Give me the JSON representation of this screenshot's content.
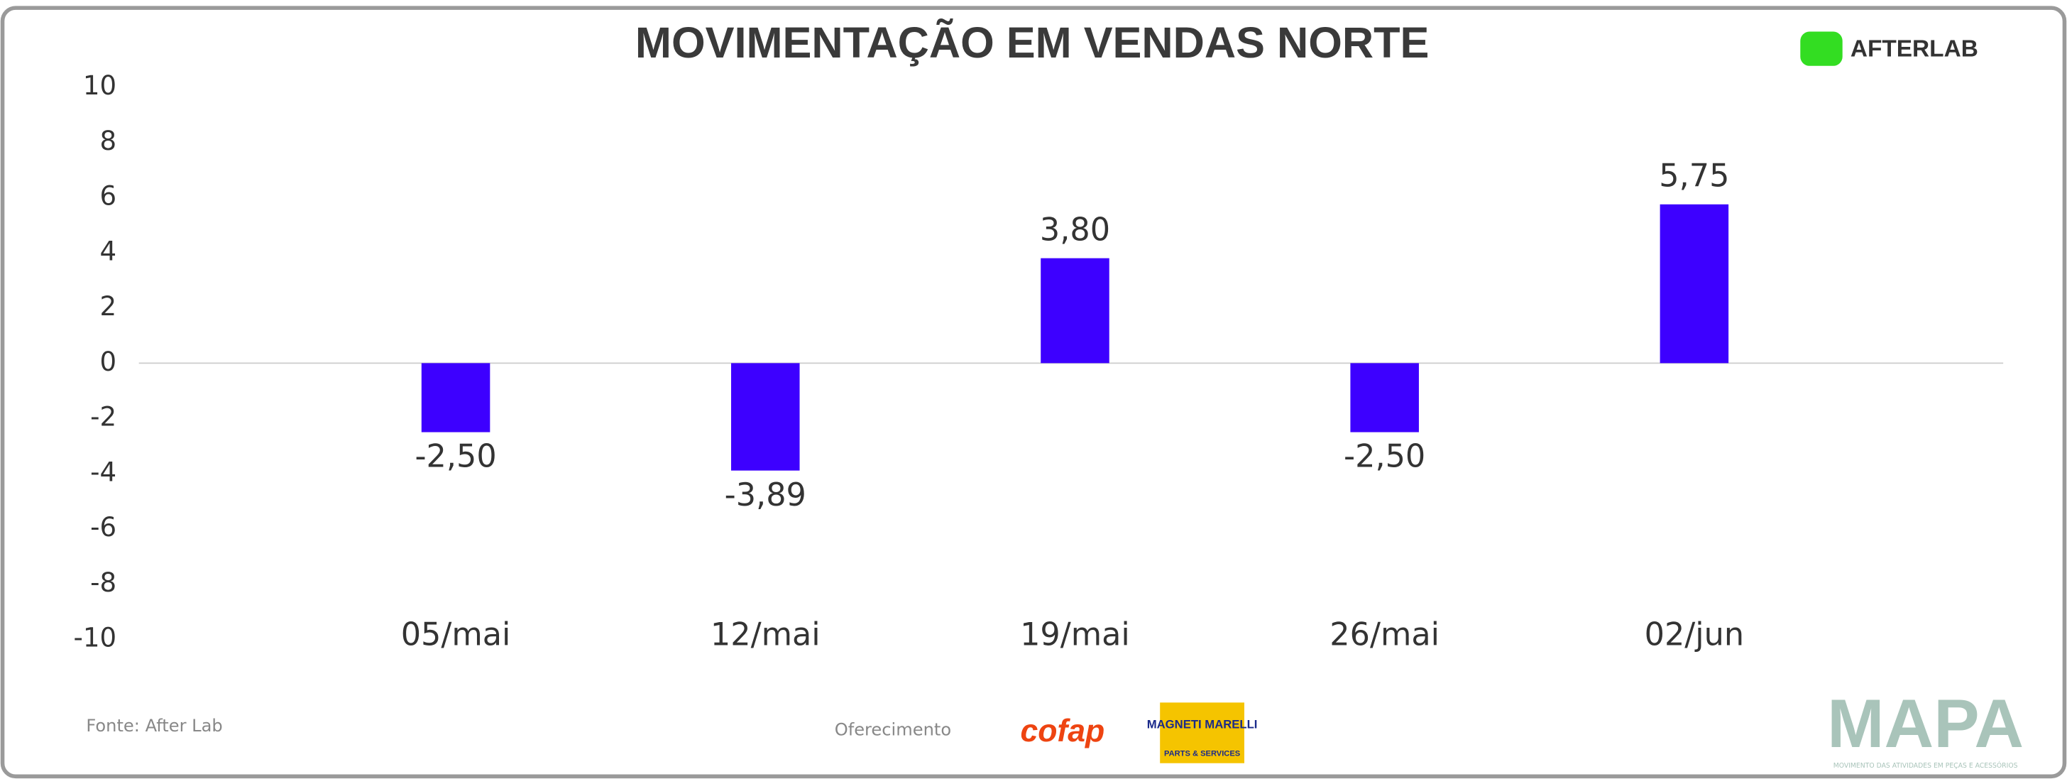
{
  "chart_data": {
    "type": "bar",
    "title": "MOVIMENTAÇÃO EM VENDAS NORTE",
    "categories": [
      "05/mai",
      "12/mai",
      "19/mai",
      "26/mai",
      "02/jun"
    ],
    "values": [
      -2.5,
      -3.89,
      3.8,
      -2.5,
      5.75
    ],
    "value_labels": [
      "-2,50",
      "-3,89",
      "3,80",
      "-2,50",
      "5,75"
    ],
    "color": "#3d00ff",
    "ylim": [
      -10,
      10
    ],
    "yticks": [
      -10,
      -8,
      -6,
      -4,
      -2,
      0,
      2,
      4,
      6,
      8,
      10
    ]
  },
  "footer": {
    "source": "Fonte: After Lab",
    "sponsor_label": "Oferecimento",
    "sponsors": [
      "cofap",
      "MAGNETI MARELLI",
      "PARTS & SERVICES"
    ]
  },
  "branding": {
    "logo": "AFTERLAB",
    "mark": "MAPA",
    "mark_subtitle": "MOVIMENTO DAS ATIVIDADES EM PEÇAS E ACESSÓRIOS"
  }
}
